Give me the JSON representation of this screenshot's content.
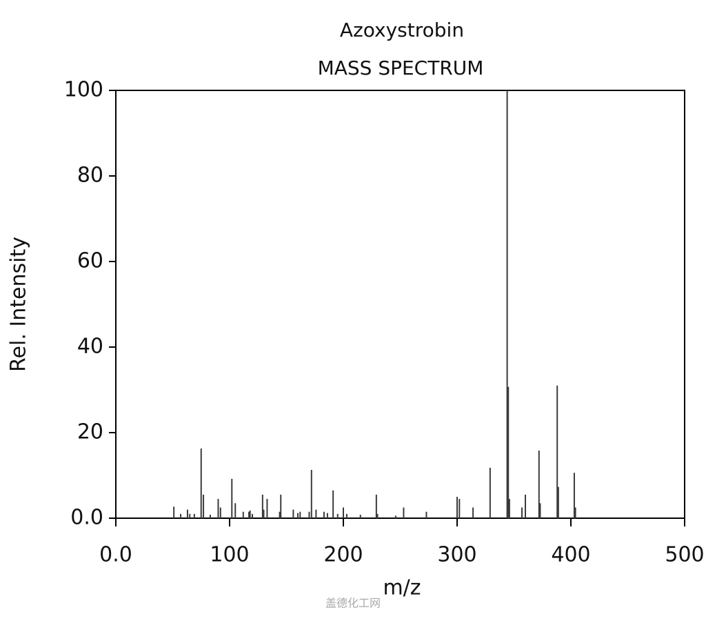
{
  "chart_data": {
    "type": "stem",
    "title": "Azoxystrobin",
    "subtitle": "MASS SPECTRUM",
    "x_label": "m/z",
    "y_label": "Rel. Intensity",
    "x": [
      51,
      57,
      63,
      65,
      69,
      75,
      77,
      83,
      90,
      92,
      102,
      105,
      112,
      117,
      118,
      120,
      129,
      130,
      133,
      144,
      145,
      156,
      160,
      162,
      170,
      172,
      176,
      183,
      186,
      191,
      195,
      200,
      203,
      215,
      229,
      230,
      246,
      253,
      273,
      300,
      302,
      314,
      329,
      344,
      345,
      346,
      357,
      360,
      372,
      373,
      388,
      389,
      403,
      404
    ],
    "values": [
      2.7,
      1,
      2,
      1,
      1,
      16.3,
      5.5,
      0.8,
      4.5,
      2.5,
      9.2,
      3.5,
      1.5,
      1.5,
      1.8,
      1,
      5.5,
      2,
      4.5,
      1.5,
      5.5,
      2,
      1.2,
      1.5,
      1.5,
      11.3,
      2,
      1.5,
      1.2,
      6.5,
      1,
      2.5,
      1,
      0.8,
      5.5,
      1,
      0.6,
      2.5,
      1.5,
      5,
      4.5,
      2.5,
      11.8,
      100,
      30.7,
      4.5,
      2.5,
      5.5,
      15.8,
      3.5,
      31,
      7.3,
      10.6,
      2.5
    ],
    "color": "#3a3a3a",
    "xlim": [
      0,
      500
    ],
    "xticks": [
      {
        "value": 0,
        "label": "0.0"
      },
      100,
      200,
      300,
      400,
      500
    ],
    "ylim": [
      0,
      100
    ],
    "yticks": [
      {
        "value": 0,
        "label": "0.0"
      },
      20,
      40,
      60,
      80,
      100
    ],
    "grid": false
  },
  "watermark": "盖德化工网"
}
